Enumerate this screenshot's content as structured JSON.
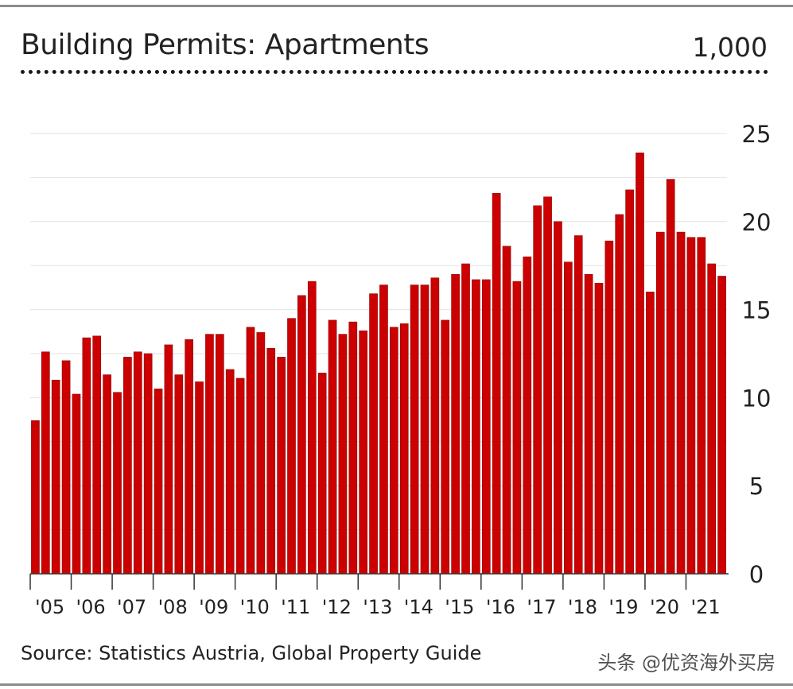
{
  "header": {
    "title": "Building Permits: Apartments",
    "unit": "1,000"
  },
  "footer": {
    "source": "Source: Statistics Austria, Global Property Guide",
    "watermark": "头条 @优资海外买房"
  },
  "colors": {
    "bar": "#cc0000",
    "bar_edge": "#8a0000",
    "grid": "#e3e3e3",
    "axis": "#333333",
    "text": "#222222"
  },
  "chart_data": {
    "type": "bar",
    "title": "Building Permits: Apartments",
    "unit": "1,000",
    "ylim": [
      0,
      25
    ],
    "yticks": [
      0,
      5,
      10,
      15,
      20,
      25
    ],
    "y_axis_position": "right",
    "grid": true,
    "x_tick_labels": [
      "'05",
      "'06",
      "'07",
      "'08",
      "'09",
      "'10",
      "'11",
      "'12",
      "'13",
      "'14",
      "'15",
      "'16",
      "'17",
      "'18",
      "'19",
      "'20",
      "'21"
    ],
    "frequency": "quarterly",
    "series": [
      {
        "values": [
          8.7,
          12.6,
          11.0,
          12.1,
          10.2,
          13.4,
          13.5,
          11.3,
          10.3,
          12.3,
          12.6,
          12.5,
          10.5,
          13.0,
          11.3,
          13.3,
          10.9,
          13.6,
          13.6,
          11.6,
          11.1,
          14.0,
          13.7,
          12.8,
          12.3,
          14.5,
          15.8,
          16.6,
          11.4,
          14.4,
          13.6,
          14.3,
          13.8,
          15.9,
          16.4,
          14.0,
          14.2,
          16.4,
          16.4,
          16.8,
          14.4,
          17.0,
          17.6,
          16.7,
          16.7,
          21.6,
          18.6,
          16.6,
          18.0,
          20.9,
          21.4,
          20.0,
          17.7,
          19.2,
          17.0,
          16.5,
          18.9,
          20.4,
          21.8,
          23.9,
          16.0,
          19.4,
          22.4,
          19.4,
          19.1,
          19.1,
          17.6,
          16.9
        ]
      }
    ]
  }
}
